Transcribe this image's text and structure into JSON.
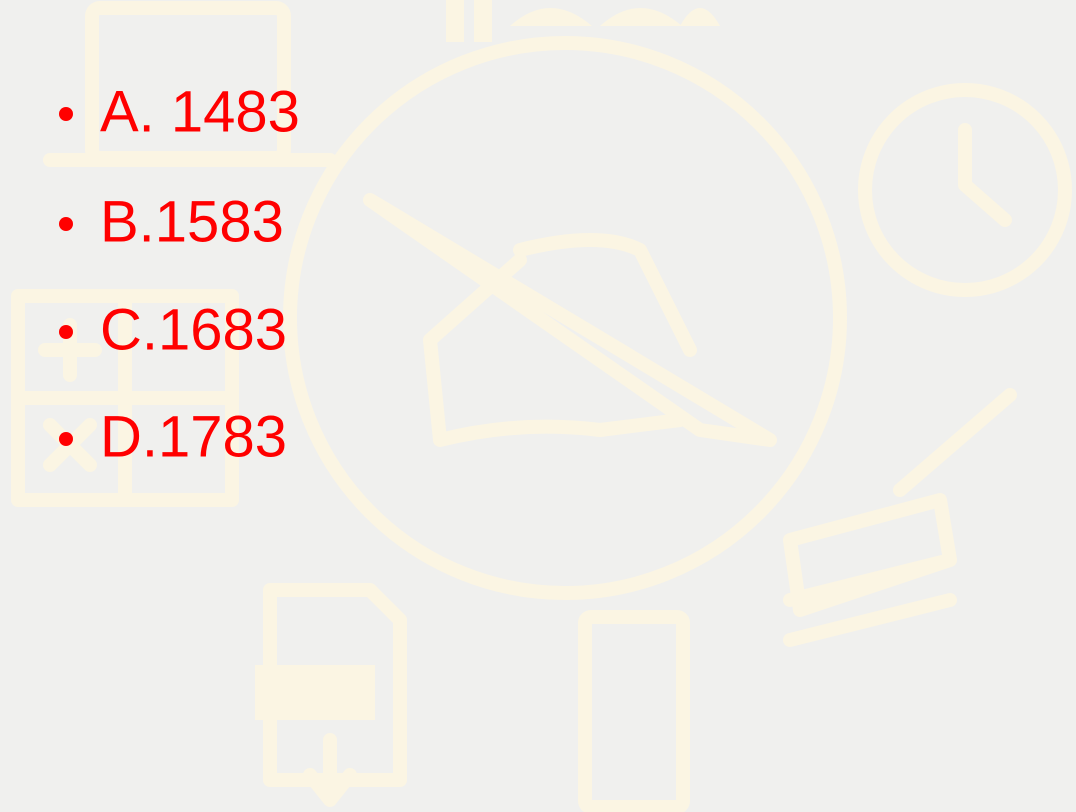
{
  "bullets": [
    "A. 1483",
    "B.1583",
    "C.1683",
    "D.1783"
  ]
}
